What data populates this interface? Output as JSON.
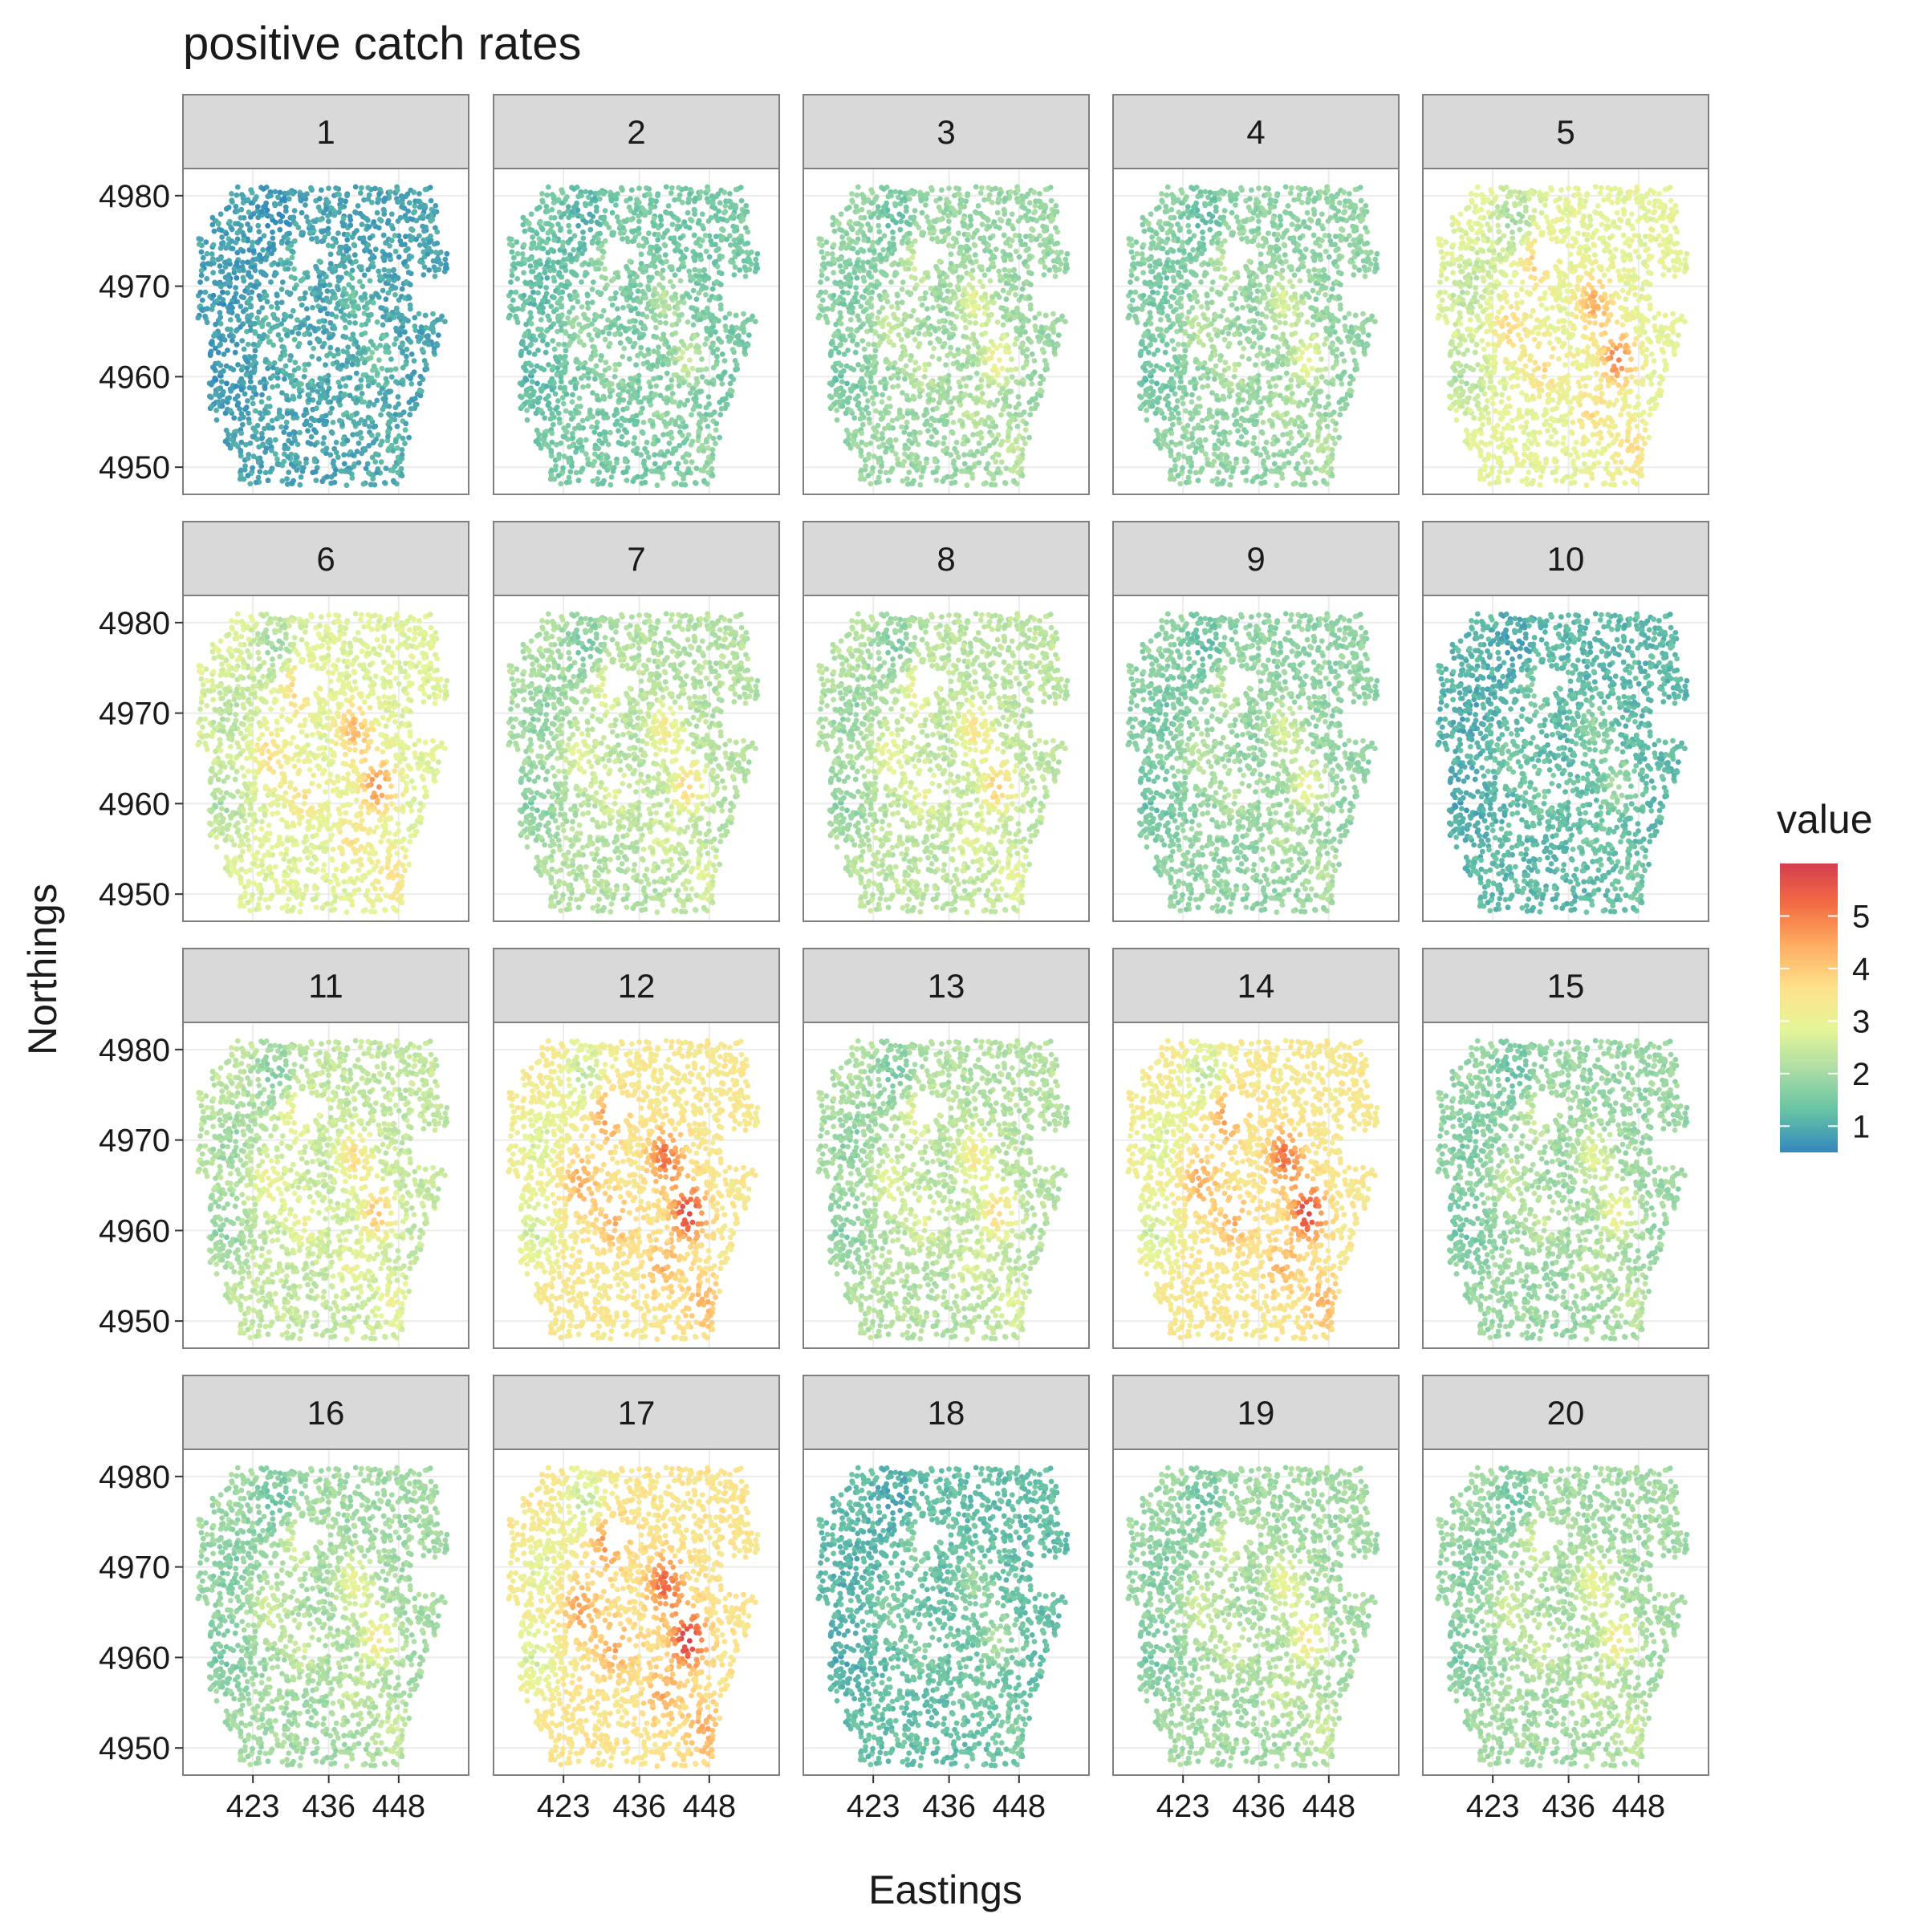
{
  "chart_data": {
    "type": "scatter",
    "title": "positive catch rates",
    "xlabel": "Eastings",
    "ylabel": "Northings",
    "xlim": [
      411,
      460
    ],
    "ylim": [
      4947,
      4983
    ],
    "x_ticks": [
      423,
      436,
      448
    ],
    "y_ticks": [
      4950,
      4960,
      4970,
      4980
    ],
    "grid": true,
    "legend": {
      "title": "value",
      "placement": "right",
      "range": [
        0.5,
        6.0
      ],
      "ticks": [
        1,
        2,
        3,
        4,
        5
      ],
      "colors": [
        "#3288bd",
        "#66c2a5",
        "#abdda4",
        "#e6f598",
        "#fee08b",
        "#fdae61",
        "#f46d43",
        "#d53e4f"
      ]
    },
    "panels": [
      {
        "label": "1",
        "level": 0.9
      },
      {
        "label": "2",
        "level": 1.5
      },
      {
        "label": "3",
        "level": 1.9
      },
      {
        "label": "4",
        "level": 1.8
      },
      {
        "label": "5",
        "level": 2.9
      },
      {
        "label": "6",
        "level": 2.8
      },
      {
        "label": "7",
        "level": 2.2
      },
      {
        "label": "8",
        "level": 2.3
      },
      {
        "label": "9",
        "level": 1.8
      },
      {
        "label": "10",
        "level": 1.2
      },
      {
        "label": "11",
        "level": 2.4
      },
      {
        "label": "12",
        "level": 3.4
      },
      {
        "label": "13",
        "level": 2.2
      },
      {
        "label": "14",
        "level": 3.4
      },
      {
        "label": "15",
        "level": 1.9
      },
      {
        "label": "16",
        "level": 2.0
      },
      {
        "label": "17",
        "level": 3.5
      },
      {
        "label": "18",
        "level": 1.3
      },
      {
        "label": "19",
        "level": 2.0
      },
      {
        "label": "20",
        "level": 2.0
      }
    ],
    "hotspots": [
      {
        "x": 444.5,
        "y": 4962.0,
        "boost": 1.6
      },
      {
        "x": 440.5,
        "y": 4968.0,
        "boost": 1.2
      },
      {
        "x": 430.5,
        "y": 4973.0,
        "boost": 0.9
      },
      {
        "x": 426.0,
        "y": 4965.5,
        "boost": 0.7
      },
      {
        "x": 432.0,
        "y": 4961.0,
        "boost": 0.6
      },
      {
        "x": 440.0,
        "y": 4956.0,
        "boost": 0.6
      },
      {
        "x": 447.0,
        "y": 4952.0,
        "boost": 0.6
      }
    ],
    "coldspots": [
      {
        "x": 427.0,
        "y": 4977.0,
        "drop": 0.7
      },
      {
        "x": 418.0,
        "y": 4960.0,
        "drop": 0.6
      },
      {
        "x": 419.0,
        "y": 4970.0,
        "drop": 0.5
      }
    ]
  }
}
